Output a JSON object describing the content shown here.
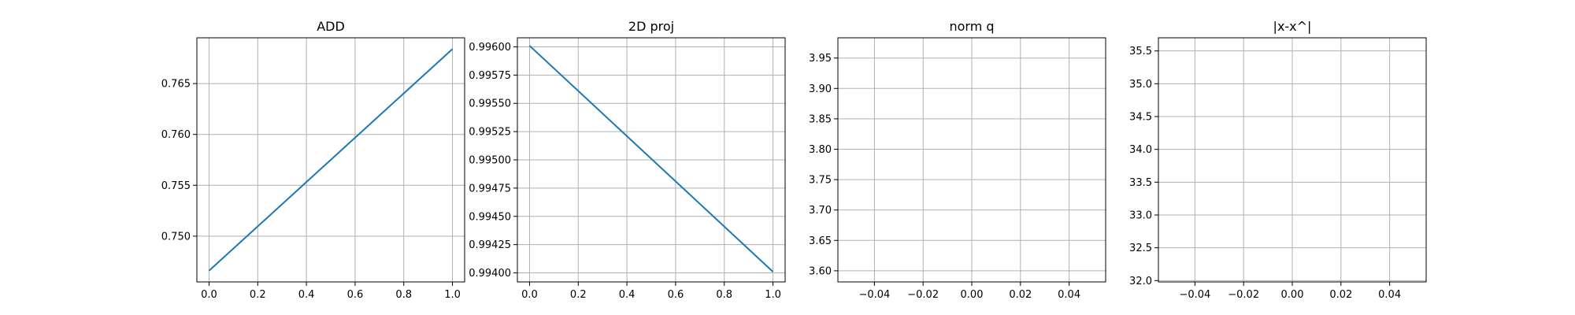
{
  "colors": {
    "line": "#1f77b4",
    "grid": "#b0b0b0",
    "axis": "#000000",
    "background": "#ffffff"
  },
  "chart_data": [
    {
      "type": "line",
      "title": "ADD",
      "xlabel": "",
      "ylabel": "",
      "grid": true,
      "xlim": [
        -0.05,
        1.05
      ],
      "ylim": [
        0.7455,
        0.7695
      ],
      "xticks": [
        0.0,
        0.2,
        0.4,
        0.6,
        0.8,
        1.0
      ],
      "xtick_labels": [
        "0.0",
        "0.2",
        "0.4",
        "0.6",
        "0.8",
        "1.0"
      ],
      "yticks": [
        0.75,
        0.755,
        0.76,
        0.765
      ],
      "ytick_labels": [
        "0.750",
        "0.755",
        "0.760",
        "0.765"
      ],
      "series": [
        {
          "x": [
            0,
            1
          ],
          "y": [
            0.7466,
            0.7684
          ]
        }
      ]
    },
    {
      "type": "line",
      "title": "2D proj",
      "xlabel": "",
      "ylabel": "",
      "grid": true,
      "xlim": [
        -0.05,
        1.05
      ],
      "ylim": [
        0.99392,
        0.99608
      ],
      "xticks": [
        0.0,
        0.2,
        0.4,
        0.6,
        0.8,
        1.0
      ],
      "xtick_labels": [
        "0.0",
        "0.2",
        "0.4",
        "0.6",
        "0.8",
        "1.0"
      ],
      "yticks": [
        0.994,
        0.99425,
        0.9945,
        0.99475,
        0.995,
        0.99525,
        0.9955,
        0.99575,
        0.996
      ],
      "ytick_labels": [
        "0.99400",
        "0.99425",
        "0.99450",
        "0.99475",
        "0.99500",
        "0.99525",
        "0.99550",
        "0.99575",
        "0.99600"
      ],
      "series": [
        {
          "x": [
            0,
            1
          ],
          "y": [
            0.99601,
            0.99401
          ]
        }
      ]
    },
    {
      "type": "line",
      "title": "norm q",
      "xlabel": "",
      "ylabel": "",
      "grid": true,
      "xlim": [
        -0.055,
        0.055
      ],
      "ylim": [
        3.5817,
        3.9833
      ],
      "xticks": [
        -0.04,
        -0.02,
        0.0,
        0.02,
        0.04
      ],
      "xtick_labels": [
        "−0.04",
        "−0.02",
        "0.00",
        "0.02",
        "0.04"
      ],
      "yticks": [
        3.6,
        3.65,
        3.7,
        3.75,
        3.8,
        3.85,
        3.9,
        3.95
      ],
      "ytick_labels": [
        "3.60",
        "3.65",
        "3.70",
        "3.75",
        "3.80",
        "3.85",
        "3.90",
        "3.95"
      ],
      "series": [
        {
          "x": [],
          "y": []
        }
      ]
    },
    {
      "type": "line",
      "title": "|x-x^|",
      "xlabel": "",
      "ylabel": "",
      "grid": true,
      "xlim": [
        -0.055,
        0.055
      ],
      "ylim": [
        31.98,
        35.7
      ],
      "xticks": [
        -0.04,
        -0.02,
        0.0,
        0.02,
        0.04
      ],
      "xtick_labels": [
        "−0.04",
        "−0.02",
        "0.00",
        "0.02",
        "0.04"
      ],
      "yticks": [
        32.0,
        32.5,
        33.0,
        33.5,
        34.0,
        34.5,
        35.0,
        35.5
      ],
      "ytick_labels": [
        "32.0",
        "32.5",
        "33.0",
        "33.5",
        "34.0",
        "34.5",
        "35.0",
        "35.5"
      ],
      "series": [
        {
          "x": [],
          "y": []
        }
      ]
    }
  ]
}
